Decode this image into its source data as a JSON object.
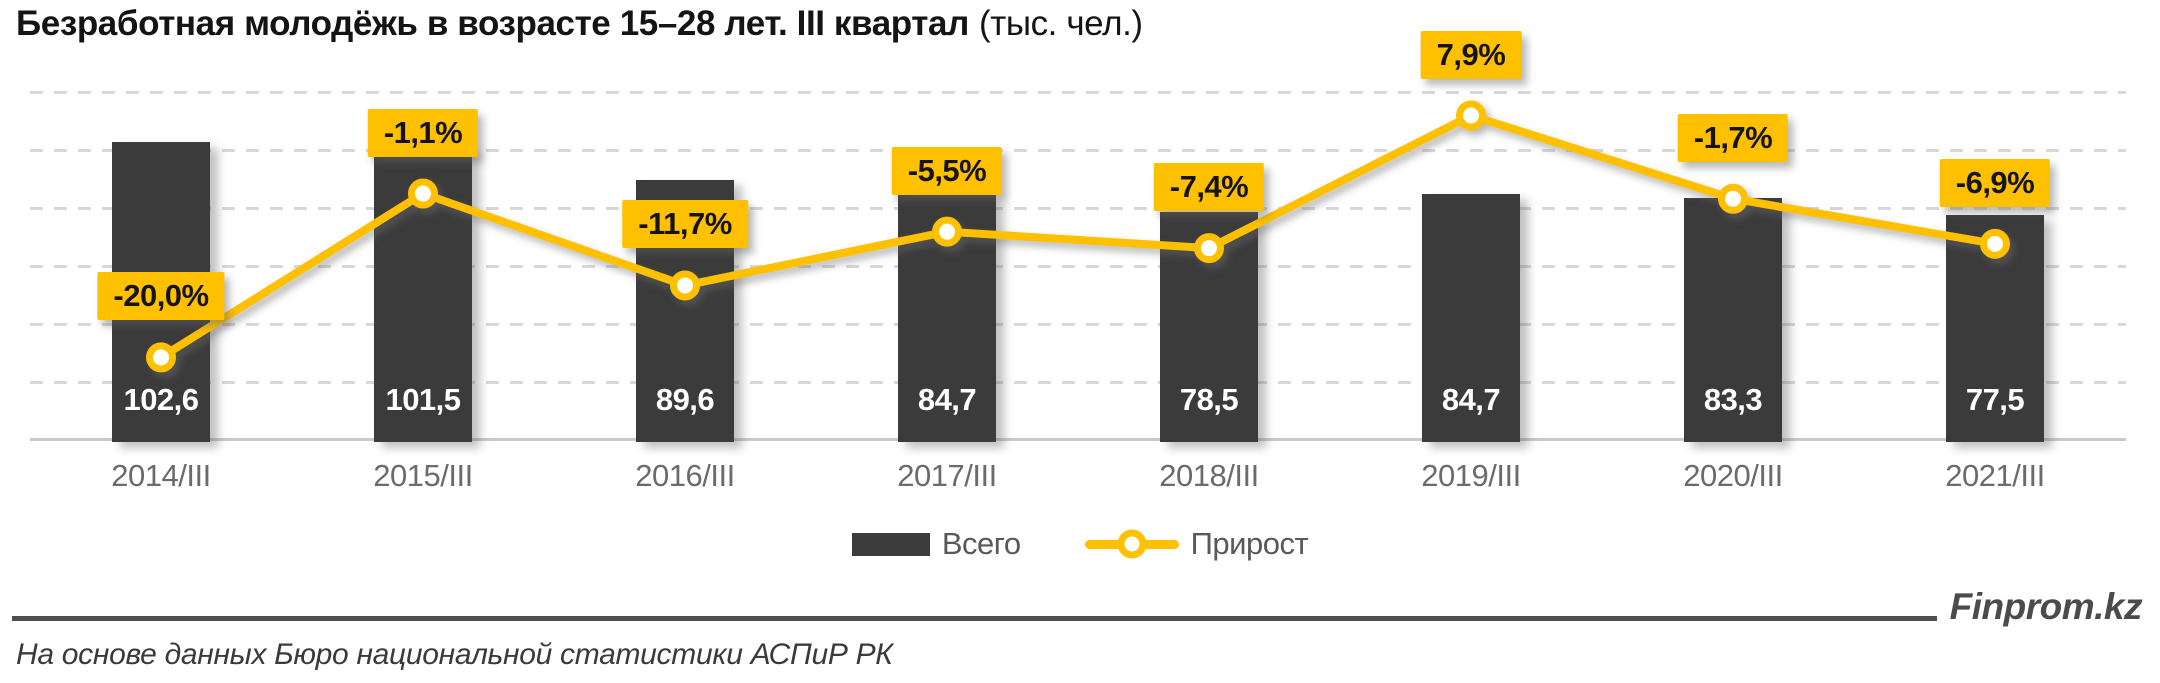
{
  "title": {
    "main": "Безработная молодёжь в возрасте 15–28 лет. III квартал",
    "unit": "(тыс. чел.)"
  },
  "chart_data": {
    "type": "bar",
    "combo": "bar+line",
    "title": "Безработная молодёжь в возрасте 15–28 лет. III квартал (тыс. чел.)",
    "categories": [
      "2014/III",
      "2015/III",
      "2016/III",
      "2017/III",
      "2018/III",
      "2019/III",
      "2020/III",
      "2021/III"
    ],
    "series": [
      {
        "name": "Всего",
        "type": "bar",
        "unit": "тыс. чел.",
        "values": [
          102.6,
          101.5,
          89.6,
          84.7,
          78.5,
          84.7,
          83.3,
          77.5
        ],
        "labels": [
          "102,6",
          "101,5",
          "89,6",
          "84,7",
          "78,5",
          "84,7",
          "83,3",
          "77,5"
        ],
        "color": "#3B3B3B"
      },
      {
        "name": "Прирост",
        "type": "line",
        "unit": "%",
        "values": [
          -20.0,
          -1.1,
          -11.7,
          -5.5,
          -7.4,
          7.9,
          -1.7,
          -6.9
        ],
        "labels": [
          "-20,0%",
          "-1,1%",
          "-11,7%",
          "-5,5%",
          "-7,4%",
          "7,9%",
          "-1,7%",
          "-6,9%"
        ],
        "color": "#FFC000"
      }
    ],
    "ylim_primary": [
      0,
      120
    ],
    "grid_step": 20,
    "grid": "dashed horizontal gridlines",
    "legend_position": "bottom-center"
  },
  "footer": {
    "brand": "Finprom.kz",
    "source": "На основе данных Бюро национальной статистики АСПиР РК"
  },
  "colors": {
    "bar": "#3B3B3B",
    "line": "#FFC000",
    "label_box": "#FFC000",
    "gridline": "#D8D8D8",
    "axis_text": "#6B6B6B",
    "bar_value_text": "#FFFFFF",
    "background": "#FFFFFF"
  }
}
